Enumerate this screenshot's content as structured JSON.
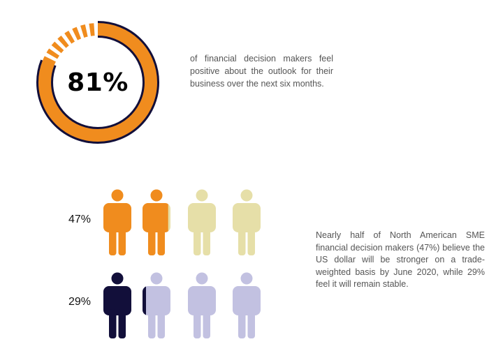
{
  "chart_data": [
    {
      "type": "donut",
      "value_label": "81%",
      "values": [
        81,
        19
      ],
      "caption": "of financial decision makers feel positive about the outlook for their business over the next six months.",
      "colors": {
        "filled": "#120f3a",
        "remainder": "#f08c1e"
      }
    },
    {
      "type": "pictogram",
      "caption": "Nearly half of North American SME financial decision makers (47%) believe the US dollar will be stronger on a trade-weighted basis by June 2020, while 29% feel it will remain stable.",
      "rows": [
        {
          "label": "47%",
          "value": 47,
          "icons": 4,
          "color_filled": "#f08c1e",
          "color_empty": "#e6dfa8"
        },
        {
          "label": "29%",
          "value": 29,
          "icons": 4,
          "color_filled": "#120f3a",
          "color_empty": "#c2c1e1"
        }
      ]
    }
  ]
}
